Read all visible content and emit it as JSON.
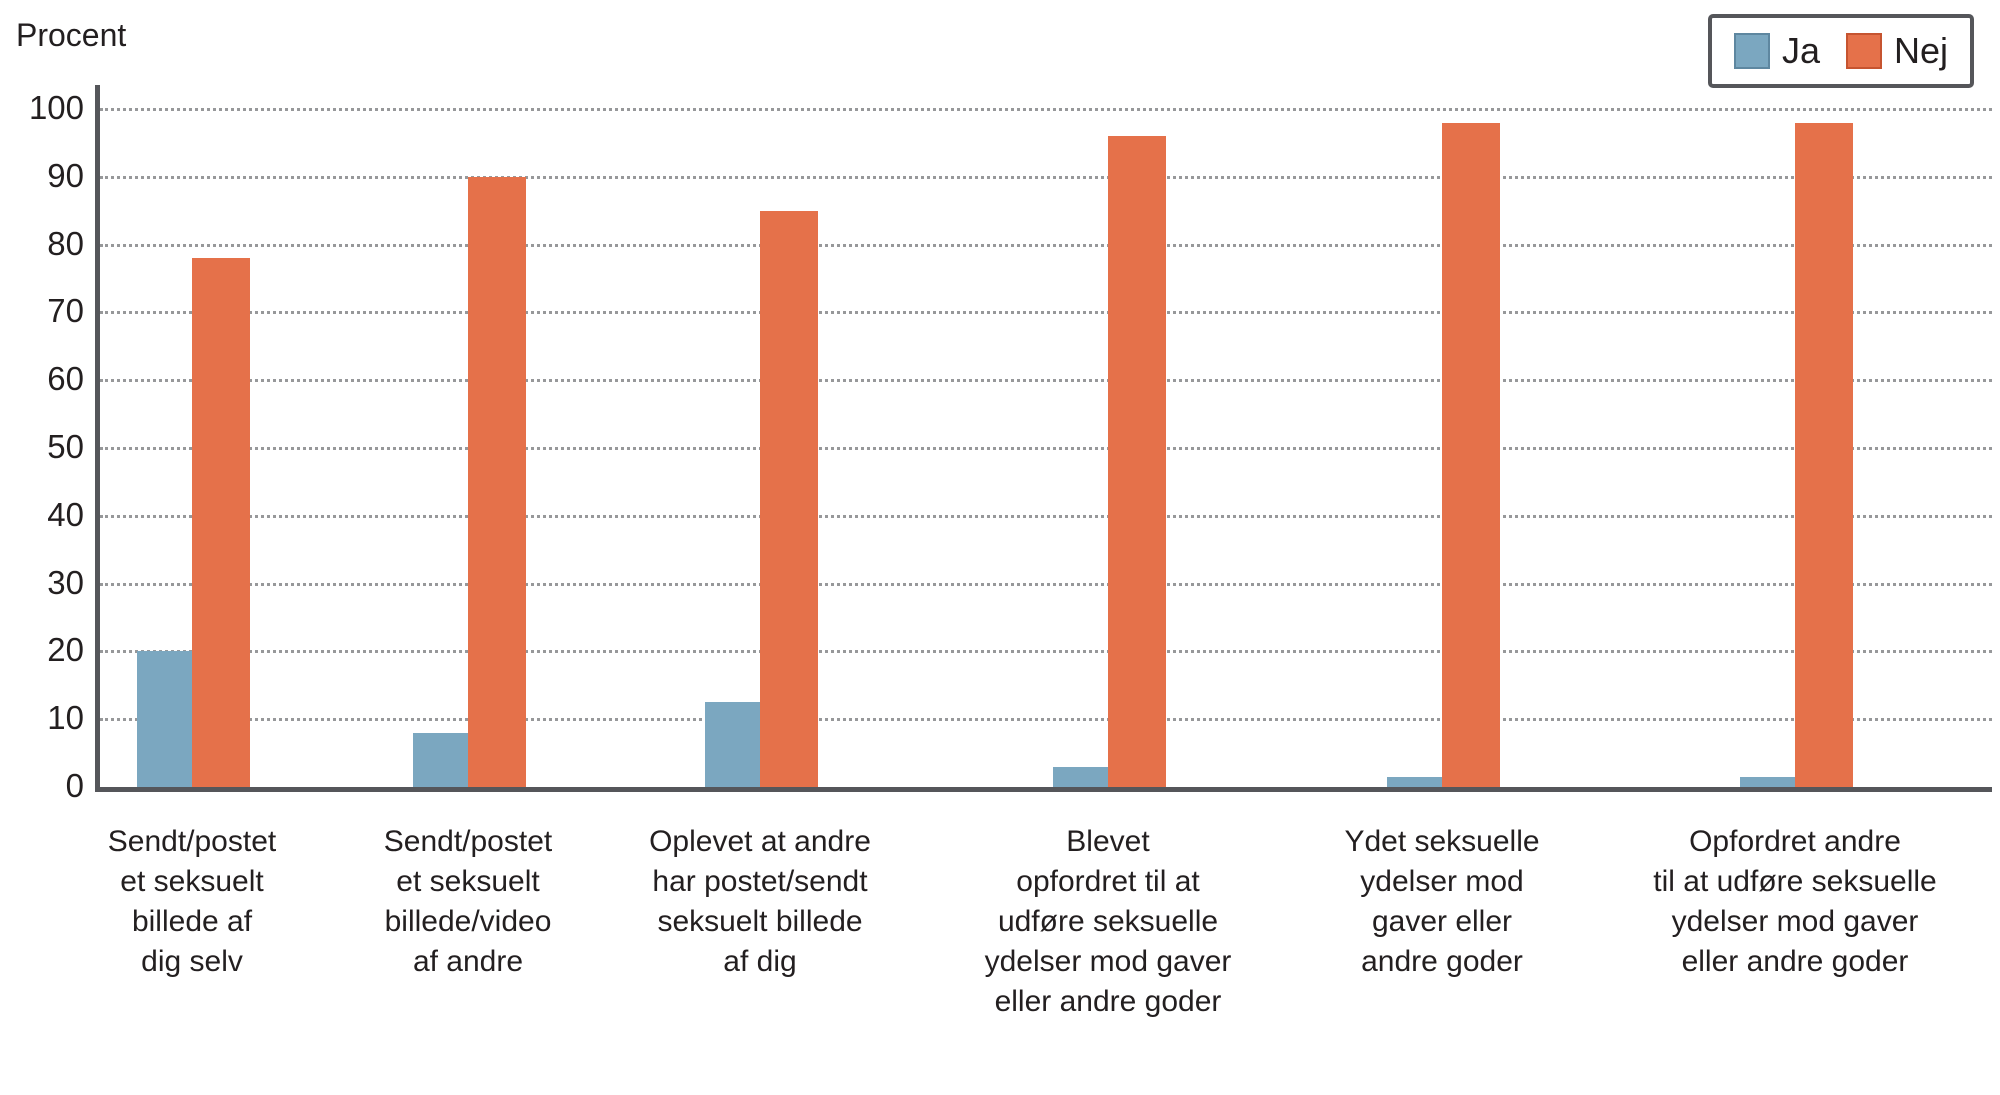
{
  "chart_data": {
    "type": "bar",
    "title": "",
    "y_axis_label": "Procent",
    "xlabel": "",
    "ylabel": "Procent",
    "ylim": [
      0,
      100
    ],
    "yticks": [
      0,
      10,
      20,
      30,
      40,
      50,
      60,
      70,
      80,
      90,
      100
    ],
    "grid": "horizontal-dotted",
    "legend_position": "top-right",
    "categories": [
      "Sendt/postet\net seksuelt\nbillede af\ndig selv",
      "Sendt/postet\net seksuelt\nbillede/video\naf andre",
      "Oplevet at andre\nhar postet/sendt\nseksuelt billede\naf dig",
      "Blevet\nopfordret til at\nudføre seksuelle\nydelser mod gaver\neller andre goder",
      "Ydet seksuelle\nydelser mod\ngaver eller\nandre goder",
      "Opfordret andre\ntil at udføre seksuelle\nydelser mod gaver\neller andre goder"
    ],
    "series": [
      {
        "name": "Ja",
        "color": "#7BA7C0",
        "edge_color": "#5E87A0",
        "values": [
          20,
          8,
          12.5,
          3,
          1.5,
          1.5
        ]
      },
      {
        "name": "Nej",
        "color": "#E5714A",
        "edge_color": "#C65430",
        "values": [
          78,
          90,
          85,
          96,
          98,
          98
        ]
      }
    ]
  },
  "colors": {
    "axis": "#55565A",
    "gridline": "#97989A",
    "text": "#231F20",
    "legend_border": "#55565A",
    "background": "#FFFFFF"
  }
}
